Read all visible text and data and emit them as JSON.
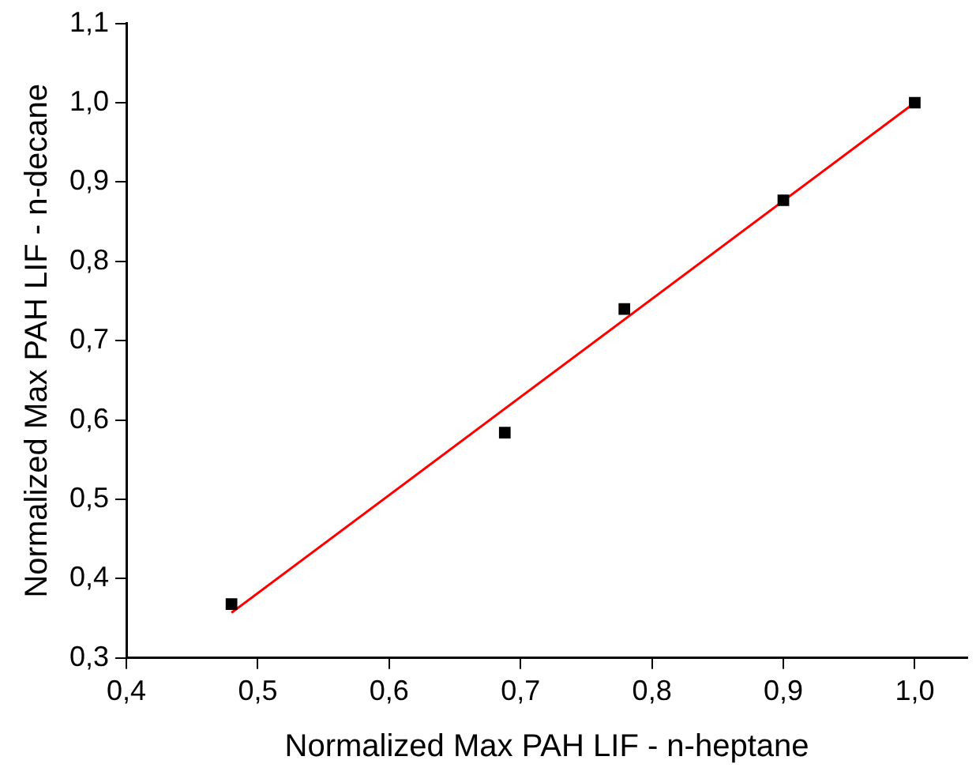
{
  "chart_data": {
    "type": "scatter",
    "xlabel": "Normalized Max PAH LIF - n-heptane",
    "ylabel": "Normalized Max PAH LIF - n-decane",
    "xlim": [
      0.4,
      1.04
    ],
    "ylim": [
      0.3,
      1.1
    ],
    "xticks": [
      {
        "value": 0.4,
        "label": "0,4"
      },
      {
        "value": 0.5,
        "label": "0,5"
      },
      {
        "value": 0.6,
        "label": "0,6"
      },
      {
        "value": 0.7,
        "label": "0,7"
      },
      {
        "value": 0.8,
        "label": "0,8"
      },
      {
        "value": 0.9,
        "label": "0,9"
      },
      {
        "value": 1.0,
        "label": "1,0"
      }
    ],
    "yticks": [
      {
        "value": 0.3,
        "label": "0,3"
      },
      {
        "value": 0.4,
        "label": "0,4"
      },
      {
        "value": 0.5,
        "label": "0,5"
      },
      {
        "value": 0.6,
        "label": "0,6"
      },
      {
        "value": 0.7,
        "label": "0,7"
      },
      {
        "value": 0.8,
        "label": "0,8"
      },
      {
        "value": 0.9,
        "label": "0,9"
      },
      {
        "value": 1.0,
        "label": "1,0"
      },
      {
        "value": 1.1,
        "label": "1,1"
      }
    ],
    "grid": false,
    "legend": false,
    "series": [
      {
        "type": "scatter",
        "marker": "square",
        "color": "#000000",
        "x": [
          0.48,
          0.688,
          0.779,
          0.9,
          1.0
        ],
        "values": [
          0.368,
          0.584,
          0.74,
          0.877,
          1.0
        ]
      },
      {
        "type": "line",
        "marker": "none",
        "color": "#ff0000",
        "x": [
          0.48,
          1.0
        ],
        "values": [
          0.357,
          1.0
        ]
      }
    ]
  }
}
